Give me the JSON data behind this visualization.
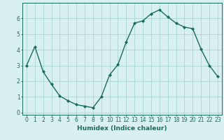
{
  "x": [
    0,
    1,
    2,
    3,
    4,
    5,
    6,
    7,
    8,
    9,
    10,
    11,
    12,
    13,
    14,
    15,
    16,
    17,
    18,
    19,
    20,
    21,
    22,
    23
  ],
  "y": [
    3.0,
    4.2,
    2.6,
    1.8,
    1.05,
    0.75,
    0.5,
    0.4,
    0.3,
    1.0,
    2.4,
    3.05,
    4.5,
    5.7,
    5.85,
    6.3,
    6.55,
    6.1,
    5.7,
    5.45,
    5.35,
    4.05,
    3.0,
    2.3
  ],
  "line_color": "#1a6b5a",
  "marker": "D",
  "markersize": 2.0,
  "linewidth": 1.0,
  "bg_color": "#d8f0f0",
  "grid_color": "#b0d8d8",
  "xlabel": "Humidex (Indice chaleur)",
  "ylim": [
    -0.15,
    7.0
  ],
  "xlim": [
    -0.5,
    23.5
  ],
  "yticks": [
    0,
    1,
    2,
    3,
    4,
    5,
    6
  ],
  "xticks": [
    0,
    1,
    2,
    3,
    4,
    5,
    6,
    7,
    8,
    9,
    10,
    11,
    12,
    13,
    14,
    15,
    16,
    17,
    18,
    19,
    20,
    21,
    22,
    23
  ],
  "label_fontsize": 6.5,
  "tick_fontsize": 5.5
}
